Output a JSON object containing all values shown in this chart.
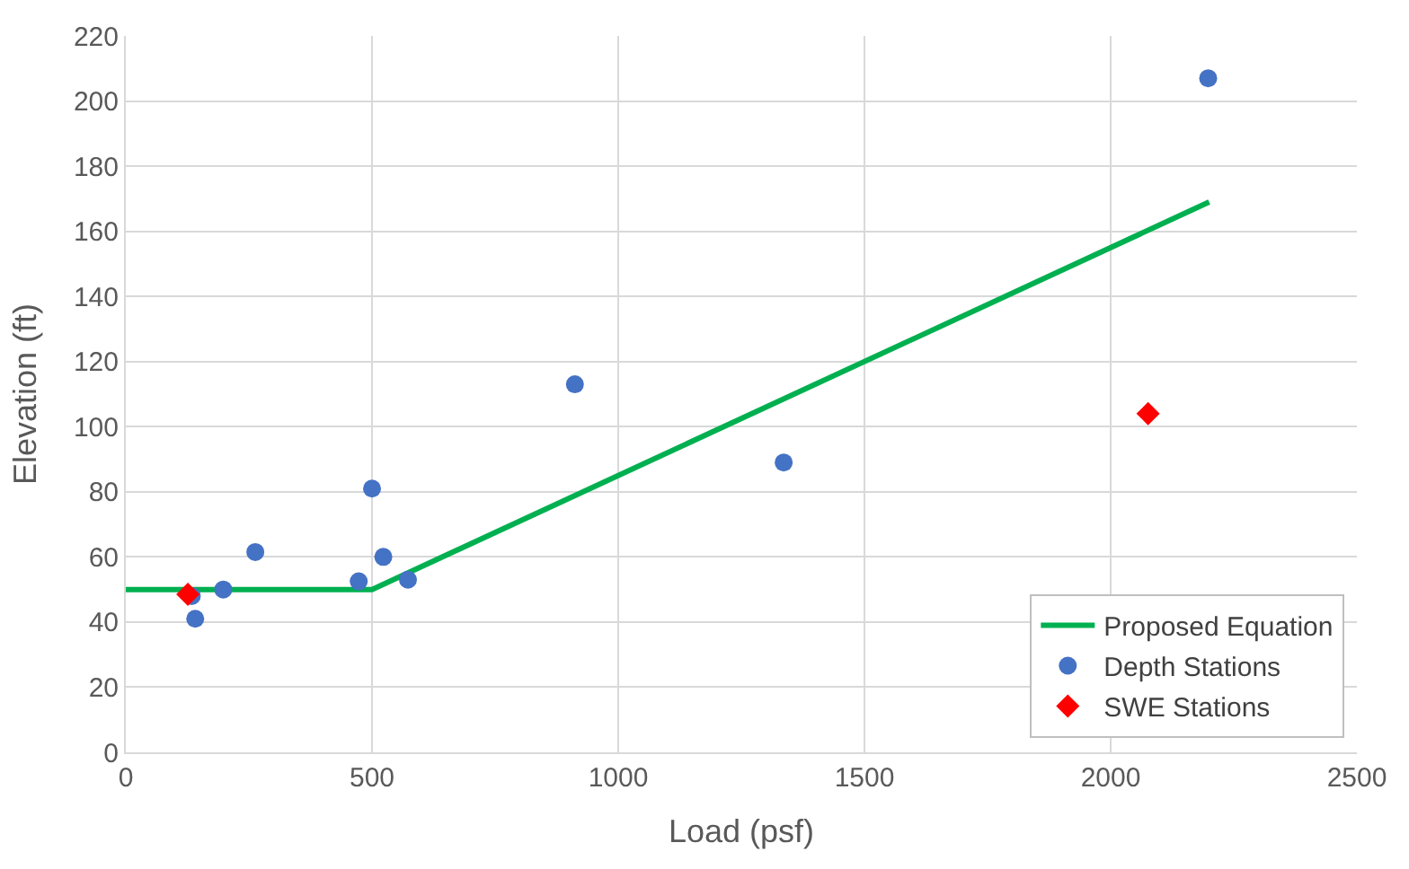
{
  "chart_data": {
    "type": "scatter",
    "xlabel": "Load (psf)",
    "ylabel": "Elevation (ft)",
    "xlim": [
      0,
      2500
    ],
    "xticks": [
      0,
      500,
      1000,
      1500,
      2000,
      2500
    ],
    "ylim": [
      0,
      220
    ],
    "yticks": [
      0,
      20,
      40,
      60,
      80,
      100,
      120,
      140,
      160,
      180,
      200,
      220
    ],
    "grid": true,
    "legend": "bottom right",
    "series": [
      {
        "name": "Proposed Equation",
        "type": "line",
        "color": "#00b050",
        "marker": "none",
        "x": [
          0,
          500,
          2200
        ],
        "values": [
          50,
          50,
          169
        ]
      },
      {
        "name": "Depth Stations",
        "color": "#4472c4",
        "marker": "circle",
        "x": [
          134,
          141,
          198,
          263,
          473,
          500,
          523,
          573,
          912,
          1336,
          2198
        ],
        "values": [
          48,
          41,
          50,
          61.5,
          52.5,
          81,
          60,
          53,
          113,
          89,
          207
        ]
      },
      {
        "name": "SWE Stations",
        "color": "#ff0000",
        "marker": "diamond",
        "x": [
          126,
          2076
        ],
        "values": [
          48.5,
          104
        ]
      }
    ]
  }
}
